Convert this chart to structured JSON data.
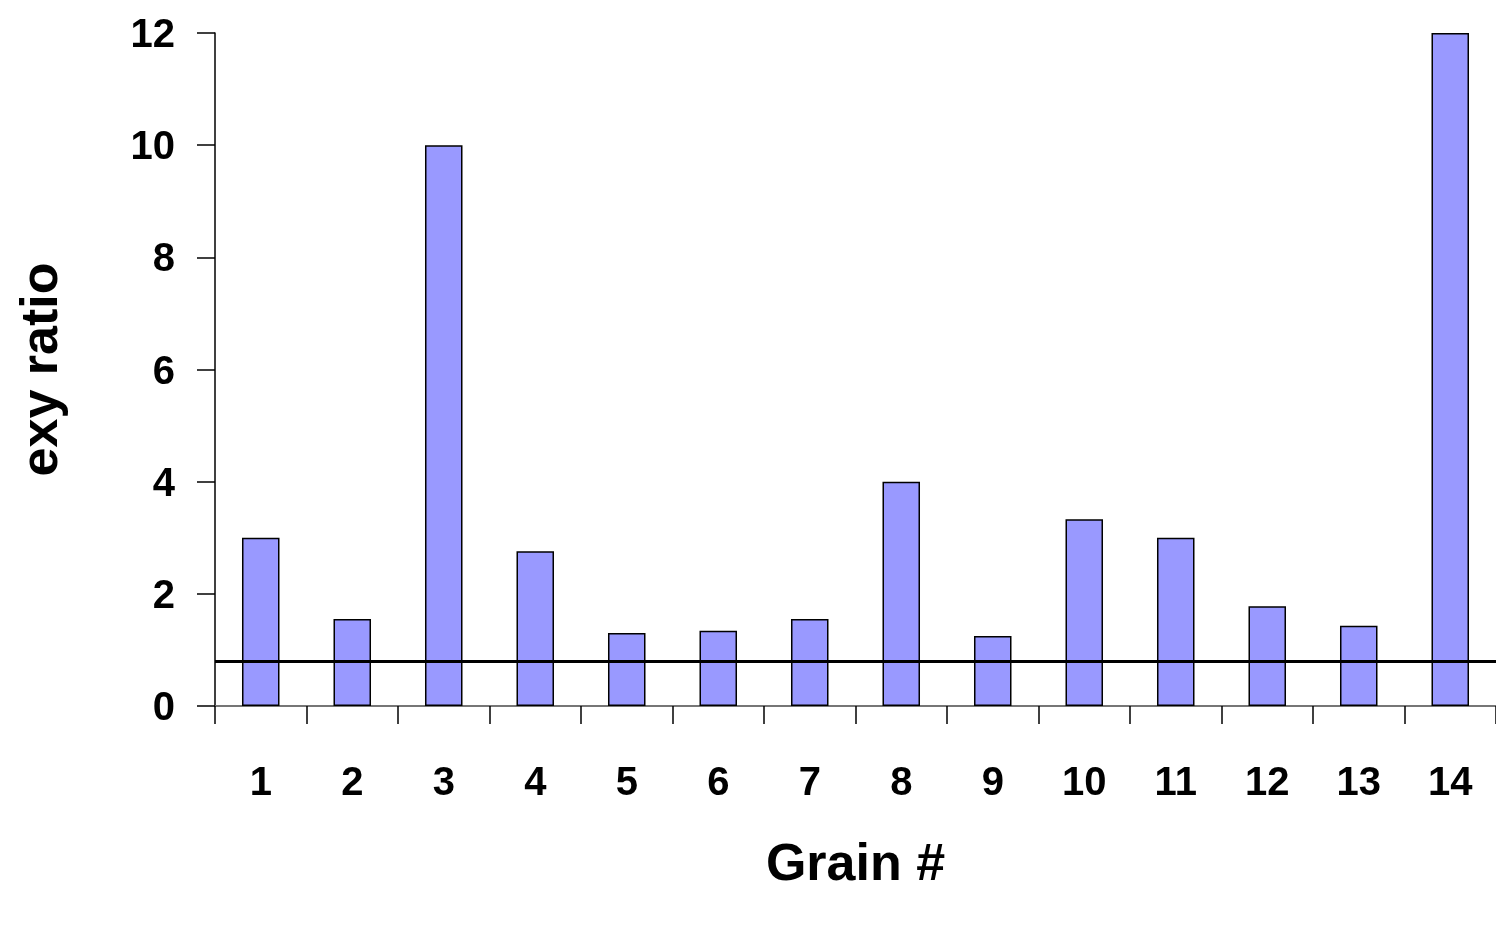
{
  "chart_data": {
    "type": "bar",
    "xlabel": "Grain #",
    "ylabel": "exy ratio",
    "categories": [
      "1",
      "2",
      "3",
      "4",
      "5",
      "6",
      "7",
      "8",
      "9",
      "10",
      "11",
      "12",
      "13",
      "14"
    ],
    "values": [
      3.0,
      1.55,
      10.0,
      2.76,
      1.3,
      1.34,
      1.55,
      4.0,
      1.25,
      3.33,
      3.0,
      1.78,
      1.43,
      12.0
    ],
    "color": "#9999ff",
    "ylim": [
      0,
      12
    ],
    "yticks": [
      0,
      2,
      4,
      6,
      8,
      10,
      12
    ],
    "grid": false,
    "ref_lines": [
      {
        "axis": "y",
        "value": 0.8,
        "color": "#000000"
      }
    ]
  }
}
